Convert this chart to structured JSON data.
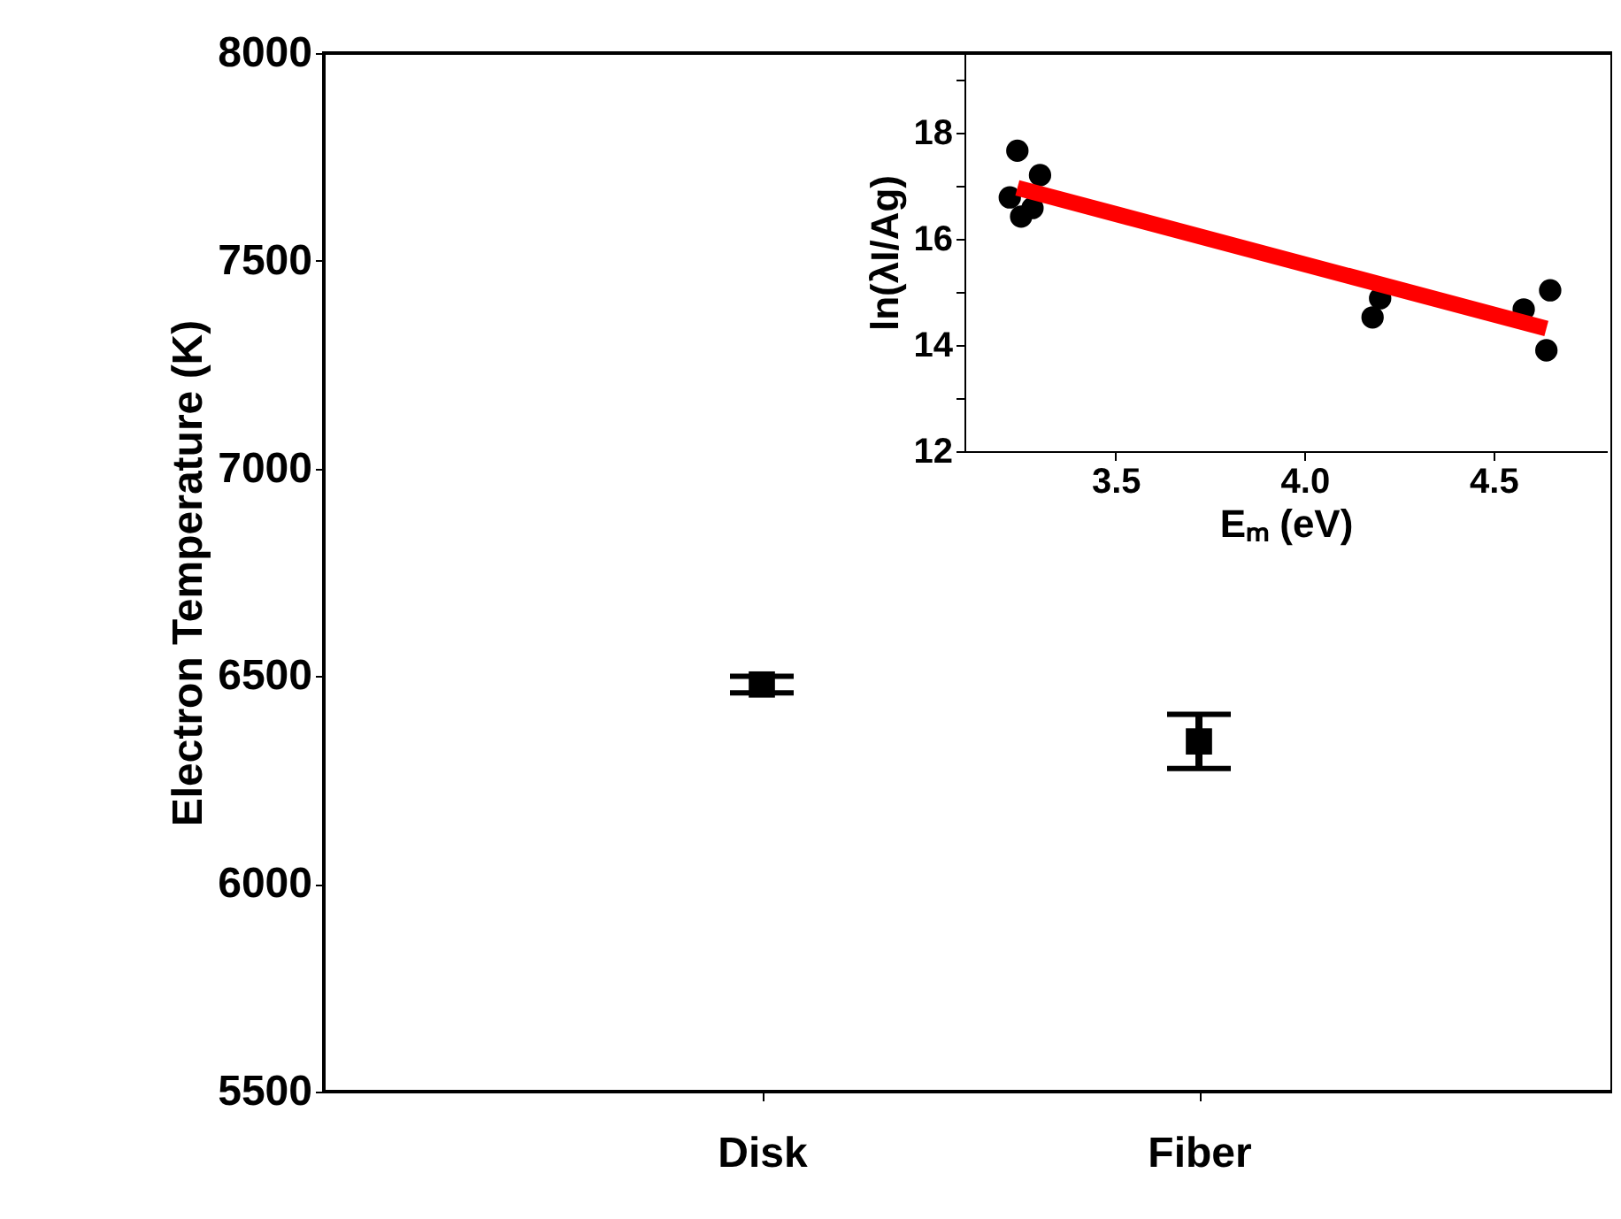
{
  "chart_data": [
    {
      "type": "scatter",
      "categories": [
        "Disk",
        "Fiber"
      ],
      "values": [
        6480,
        6343
      ],
      "errors": [
        20,
        65
      ],
      "color": "#000000",
      "marker": "square",
      "ylabel": "Electron Temperature (K)",
      "ylim": [
        5500,
        8000
      ],
      "yticks": [
        5500,
        6000,
        6500,
        7000,
        7500,
        8000
      ],
      "grid": false
    },
    {
      "type": "scatter",
      "xlabel": "Eₘ (eV)",
      "ylabel": "ln(λI/Ag)",
      "xlim": [
        3.1,
        4.8
      ],
      "xticks": [
        {
          "value": 3.5,
          "label": "3.5"
        },
        {
          "value": 4.0,
          "label": "4.0"
        },
        {
          "value": 4.5,
          "label": "4.5"
        }
      ],
      "ylim": [
        12,
        19.5
      ],
      "yticks": [
        12,
        {
          "value": 13,
          "label": null
        },
        14,
        {
          "value": 15,
          "label": null
        },
        16,
        {
          "value": 17,
          "label": null
        },
        18,
        {
          "value": 19,
          "label": null
        }
      ],
      "grid": false,
      "series": [
        {
          "color": "#000000",
          "marker": "circle",
          "x": [
            3.24,
            3.3,
            3.22,
            3.25,
            3.28,
            4.18,
            4.2,
            4.58,
            4.65,
            4.64
          ],
          "values": [
            17.66,
            17.2,
            16.78,
            16.42,
            16.58,
            14.52,
            14.88,
            14.67,
            15.03,
            13.9
          ]
        },
        {
          "type": "line",
          "color": "#ff0000",
          "x": [
            3.24,
            4.64
          ],
          "values": [
            16.96,
            14.31
          ]
        }
      ]
    }
  ]
}
